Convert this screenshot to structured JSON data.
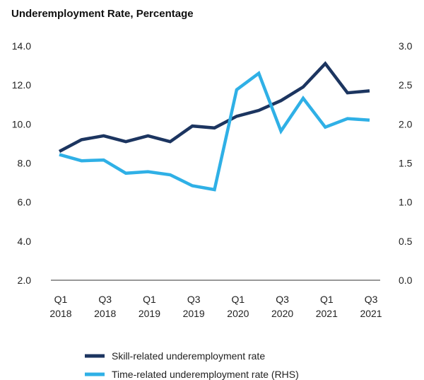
{
  "chart_data": {
    "type": "line",
    "title": "Underemployment Rate, Percentage",
    "xlabel": "",
    "ylabel": "",
    "ylim": [
      2.0,
      14.0
    ],
    "y2lim": [
      0.0,
      3.0
    ],
    "y_ticks": [
      "14.0",
      "12.0",
      "10.0",
      "8.0",
      "6.0",
      "4.0",
      "2.0"
    ],
    "y2_ticks": [
      "3.0",
      "2.5",
      "2.0",
      "1.5",
      "1.0",
      "0.5",
      "0.0"
    ],
    "categories": [
      "Q1 2018",
      "Q2 2018",
      "Q3 2018",
      "Q4 2018",
      "Q1 2019",
      "Q2 2019",
      "Q3 2019",
      "Q4 2019",
      "Q1 2020",
      "Q2 2020",
      "Q3 2020",
      "Q4 2020",
      "Q1 2021",
      "Q2 2021",
      "Q3 2021"
    ],
    "x_tick_labels": [
      {
        "index": 0,
        "line1": "Q1",
        "line2": "2018"
      },
      {
        "index": 2,
        "line1": "Q3",
        "line2": "2018"
      },
      {
        "index": 4,
        "line1": "Q1",
        "line2": "2019"
      },
      {
        "index": 6,
        "line1": "Q3",
        "line2": "2019"
      },
      {
        "index": 8,
        "line1": "Q1",
        "line2": "2020"
      },
      {
        "index": 10,
        "line1": "Q3",
        "line2": "2020"
      },
      {
        "index": 12,
        "line1": "Q1",
        "line2": "2021"
      },
      {
        "index": 14,
        "line1": "Q3",
        "line2": "2021"
      }
    ],
    "series": [
      {
        "name": "Skill-related underemployment rate",
        "axis": "left",
        "color": "#1c3560",
        "values": [
          8.6,
          9.2,
          9.4,
          9.1,
          9.4,
          9.1,
          9.9,
          9.8,
          10.4,
          10.7,
          11.2,
          11.9,
          13.1,
          11.6,
          11.7
        ]
      },
      {
        "name": "Time-related underemployment rate (RHS)",
        "axis": "right",
        "color": "#2fb0e6",
        "values": [
          1.61,
          1.53,
          1.54,
          1.37,
          1.39,
          1.35,
          1.21,
          1.16,
          2.44,
          2.65,
          1.91,
          2.33,
          1.96,
          2.07,
          2.05
        ]
      }
    ],
    "grid": false,
    "legend_position": "bottom"
  }
}
